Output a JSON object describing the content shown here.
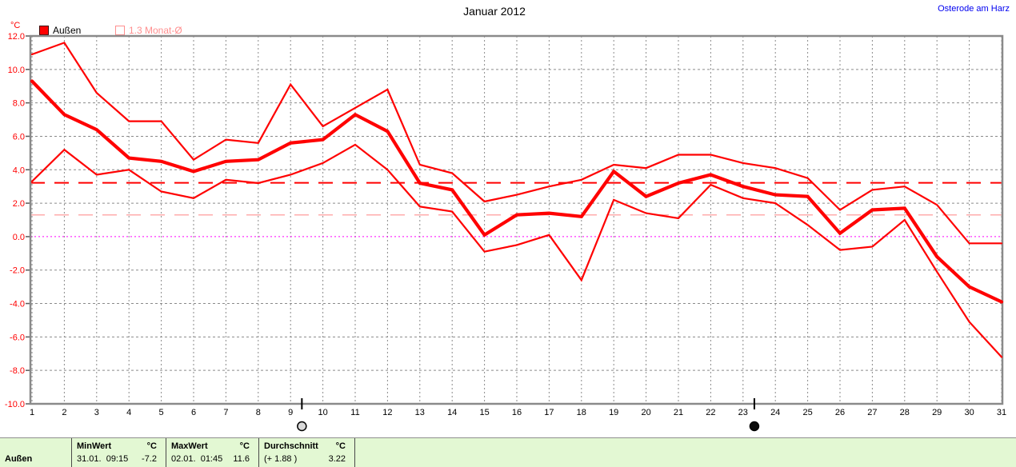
{
  "header": {
    "title": "Januar 2012",
    "station": "Osterode am Harz"
  },
  "legend": {
    "unit": "°C",
    "outdoor_label": "Außen",
    "month_avg_label": "1.3 Monat-Ø"
  },
  "colors": {
    "series_red": "#ff0000",
    "month_avg_pink": "#ffacac",
    "zero_line_magenta": "#ff00ff",
    "grid_gray": "#8a8a8a",
    "axis_gray": "#8a8a8a",
    "station_link_blue": "#0000f0",
    "status_bar_green": "#e3f8d3"
  },
  "chart_data": {
    "type": "line",
    "title": "Januar 2012",
    "unit": "°C",
    "grid": true,
    "x": [
      1,
      2,
      3,
      4,
      5,
      6,
      7,
      8,
      9,
      10,
      11,
      12,
      13,
      14,
      15,
      16,
      17,
      18,
      19,
      20,
      21,
      22,
      23,
      24,
      25,
      26,
      27,
      28,
      29,
      30,
      31
    ],
    "ylim": [
      -10,
      12
    ],
    "ytick_step": 2,
    "series": [
      {
        "name": "Außen Tagesmaximum",
        "role": "max",
        "width": 2.2,
        "values": [
          10.9,
          11.6,
          8.6,
          6.9,
          6.9,
          4.6,
          5.8,
          5.6,
          9.1,
          6.6,
          7.7,
          8.8,
          4.3,
          3.8,
          2.1,
          2.5,
          3.0,
          3.4,
          4.3,
          4.1,
          4.9,
          4.9,
          4.4,
          4.1,
          3.5,
          1.6,
          2.8,
          3.0,
          1.9,
          -0.4,
          -0.4
        ]
      },
      {
        "name": "Außen Tagesmittel",
        "role": "mean",
        "width": 4.2,
        "values": [
          9.3,
          7.3,
          6.4,
          4.7,
          4.5,
          3.9,
          4.5,
          4.6,
          5.6,
          5.8,
          7.3,
          6.3,
          3.2,
          2.8,
          0.1,
          1.3,
          1.4,
          1.2,
          3.9,
          2.4,
          3.2,
          3.7,
          3.0,
          2.5,
          2.4,
          0.2,
          1.6,
          1.7,
          -1.2,
          -3.0,
          -3.9
        ]
      },
      {
        "name": "Außen Tagesminimum",
        "role": "min",
        "width": 2.2,
        "values": [
          3.3,
          5.2,
          3.7,
          4.0,
          2.7,
          2.3,
          3.4,
          3.2,
          3.7,
          4.4,
          5.5,
          4.0,
          1.8,
          1.5,
          -0.9,
          -0.5,
          0.1,
          -2.6,
          2.2,
          1.4,
          1.1,
          3.1,
          2.3,
          2.0,
          0.7,
          -0.8,
          -0.6,
          1.0,
          -2.1,
          -5.1,
          -7.2
        ]
      }
    ],
    "reference_lines": [
      {
        "label": "Durchschnitt 3.22 °C",
        "value": 3.22,
        "color": "#ff0000",
        "style": "dashed",
        "width": 2
      },
      {
        "label": "1.3 Monat-Ø",
        "value": 1.3,
        "color": "#ffacac",
        "style": "dashed",
        "width": 1.5
      },
      {
        "label": "0 °C Linie",
        "value": 0,
        "color": "#ff00ff",
        "style": "dotted",
        "width": 1
      }
    ],
    "moon_phases": [
      {
        "symbol": "full-moon",
        "day": 9.35
      },
      {
        "symbol": "new-moon",
        "day": 23.35
      }
    ],
    "legend_position": "top-left"
  },
  "status_table": {
    "row_label": "Außen",
    "columns": [
      {
        "header": "MinWert",
        "unit": "°C",
        "datetime": "31.01.  09:15",
        "value": "-7.2"
      },
      {
        "header": "MaxWert",
        "unit": "°C",
        "datetime": "02.01.  01:45",
        "value": "11.6"
      },
      {
        "header": "Durchschnitt",
        "unit": "°C",
        "datetime": "(+ 1.88 )",
        "value": "3.22"
      }
    ]
  }
}
